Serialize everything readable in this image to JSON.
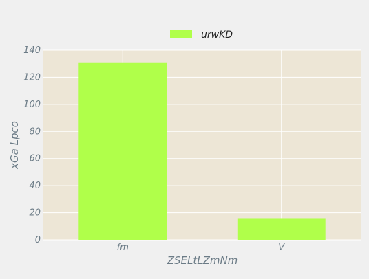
{
  "chart_data": {
    "type": "bar",
    "title": "",
    "xlabel": "ZSELtLZmNm",
    "ylabel": "xGa  Lpco",
    "categories": [
      "fm",
      "V"
    ],
    "series": [
      {
        "name": "urwKD",
        "values": [
          131,
          16
        ],
        "color": "#b0ff4a"
      }
    ],
    "ylim": [
      0,
      140
    ],
    "yticks": [
      0,
      20,
      40,
      60,
      80,
      100,
      120,
      140
    ],
    "grid": true,
    "legend_position": "top-center",
    "colors": {
      "plot_background": "#ede6d6",
      "page_background": "#f0f0f0",
      "grid": "#ffffff",
      "text": "#6b7b86"
    }
  }
}
